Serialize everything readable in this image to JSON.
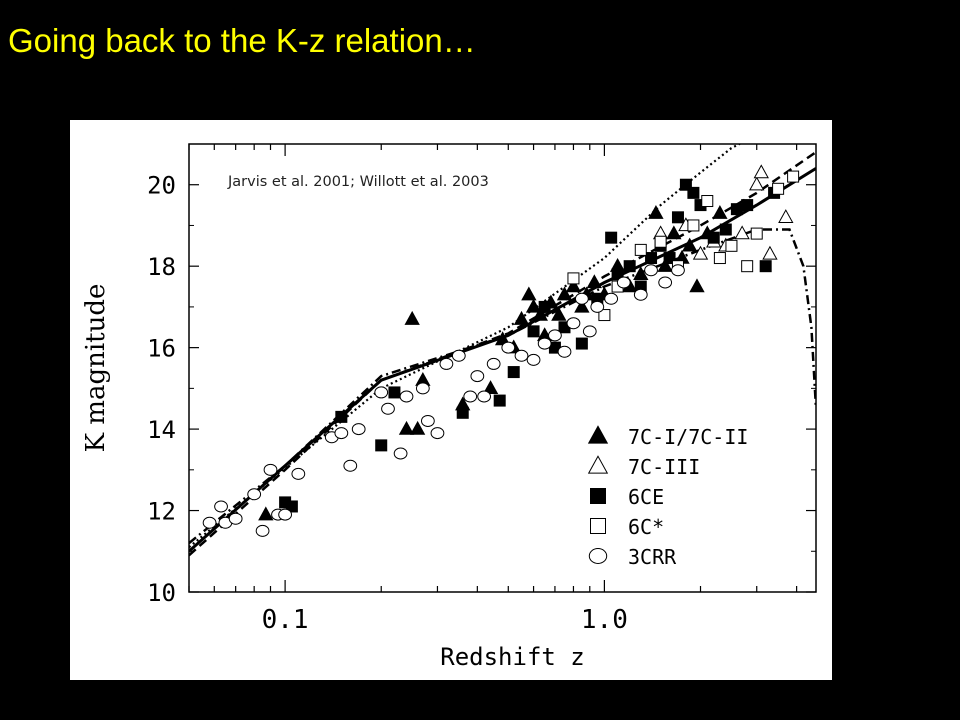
{
  "slide": {
    "title": "Going back to the K-z relation…",
    "background": "#000000",
    "title_color": "#ffff00"
  },
  "chart_data": {
    "type": "scatter",
    "title": "",
    "annotation": "Jarvis et al. 2001; Willott et al. 2003",
    "xlabel": "Redshift z",
    "ylabel": "K magnitude",
    "x_scale": "log",
    "xlim": [
      0.05,
      4.6
    ],
    "ylim": [
      10,
      21
    ],
    "x_ticks": [
      0.1,
      1.0
    ],
    "x_tick_labels": [
      "0.1",
      "1.0"
    ],
    "y_ticks": [
      10,
      12,
      14,
      16,
      18,
      20
    ],
    "y_tick_labels": [
      "10",
      "12",
      "14",
      "16",
      "18",
      "20"
    ],
    "grid": false,
    "legend_position": "bottom-right",
    "series": [
      {
        "name": "7C-I/7C-II",
        "marker": "filled-triangle",
        "points": [
          [
            0.087,
            11.9
          ],
          [
            0.25,
            16.7
          ],
          [
            0.27,
            15.2
          ],
          [
            0.24,
            14.0
          ],
          [
            0.26,
            14.0
          ],
          [
            0.36,
            14.6
          ],
          [
            0.44,
            15.0
          ],
          [
            0.48,
            16.2
          ],
          [
            0.52,
            16.0
          ],
          [
            0.55,
            16.7
          ],
          [
            0.58,
            17.3
          ],
          [
            0.6,
            17.0
          ],
          [
            0.63,
            16.8
          ],
          [
            0.65,
            16.3
          ],
          [
            0.68,
            17.1
          ],
          [
            0.72,
            16.8
          ],
          [
            0.75,
            17.3
          ],
          [
            0.8,
            17.5
          ],
          [
            0.85,
            17.0
          ],
          [
            0.88,
            17.3
          ],
          [
            0.93,
            17.6
          ],
          [
            1.0,
            17.3
          ],
          [
            1.1,
            18.0
          ],
          [
            1.2,
            17.5
          ],
          [
            1.3,
            17.8
          ],
          [
            1.45,
            19.3
          ],
          [
            1.55,
            18.0
          ],
          [
            1.65,
            18.8
          ],
          [
            1.75,
            18.2
          ],
          [
            1.85,
            18.5
          ],
          [
            1.95,
            17.5
          ],
          [
            2.1,
            18.8
          ],
          [
            2.3,
            19.3
          ]
        ]
      },
      {
        "name": "7C-III",
        "marker": "open-triangle",
        "points": [
          [
            1.5,
            18.8
          ],
          [
            1.8,
            19.0
          ],
          [
            2.0,
            18.3
          ],
          [
            2.2,
            18.6
          ],
          [
            2.4,
            18.5
          ],
          [
            2.7,
            18.8
          ],
          [
            3.0,
            20.0
          ],
          [
            3.1,
            20.3
          ],
          [
            3.3,
            18.3
          ],
          [
            3.7,
            19.2
          ]
        ]
      },
      {
        "name": "6CE",
        "marker": "filled-square",
        "points": [
          [
            0.1,
            12.2
          ],
          [
            0.105,
            12.1
          ],
          [
            0.15,
            14.3
          ],
          [
            0.2,
            13.6
          ],
          [
            0.22,
            14.9
          ],
          [
            0.36,
            14.4
          ],
          [
            0.47,
            14.7
          ],
          [
            0.52,
            15.4
          ],
          [
            0.6,
            16.4
          ],
          [
            0.65,
            17.0
          ],
          [
            0.7,
            16.0
          ],
          [
            0.75,
            16.5
          ],
          [
            0.85,
            16.1
          ],
          [
            0.95,
            17.2
          ],
          [
            1.05,
            18.7
          ],
          [
            1.1,
            17.8
          ],
          [
            1.2,
            18.0
          ],
          [
            1.3,
            17.5
          ],
          [
            1.4,
            18.2
          ],
          [
            1.5,
            18.5
          ],
          [
            1.6,
            18.2
          ],
          [
            1.7,
            19.2
          ],
          [
            1.8,
            20.0
          ],
          [
            1.9,
            19.8
          ],
          [
            2.0,
            19.5
          ],
          [
            2.2,
            18.7
          ],
          [
            2.4,
            18.9
          ],
          [
            2.6,
            19.4
          ],
          [
            2.8,
            19.5
          ],
          [
            3.2,
            18.0
          ],
          [
            3.4,
            19.8
          ]
        ]
      },
      {
        "name": "6C*",
        "marker": "open-square",
        "points": [
          [
            0.8,
            17.7
          ],
          [
            1.0,
            16.8
          ],
          [
            1.1,
            17.5
          ],
          [
            1.3,
            18.4
          ],
          [
            1.5,
            18.6
          ],
          [
            1.7,
            18.0
          ],
          [
            1.9,
            19.0
          ],
          [
            2.1,
            19.6
          ],
          [
            2.3,
            18.2
          ],
          [
            2.5,
            18.5
          ],
          [
            2.8,
            18.0
          ],
          [
            3.0,
            18.8
          ],
          [
            3.5,
            19.9
          ],
          [
            3.9,
            20.2
          ]
        ]
      },
      {
        "name": "3CRR",
        "marker": "open-circle",
        "points": [
          [
            0.058,
            11.7
          ],
          [
            0.063,
            12.1
          ],
          [
            0.065,
            11.7
          ],
          [
            0.07,
            11.8
          ],
          [
            0.08,
            12.4
          ],
          [
            0.085,
            11.5
          ],
          [
            0.09,
            13.0
          ],
          [
            0.095,
            11.9
          ],
          [
            0.1,
            11.9
          ],
          [
            0.11,
            12.9
          ],
          [
            0.14,
            13.8
          ],
          [
            0.15,
            13.9
          ],
          [
            0.16,
            13.1
          ],
          [
            0.17,
            14.0
          ],
          [
            0.2,
            14.9
          ],
          [
            0.21,
            14.5
          ],
          [
            0.23,
            13.4
          ],
          [
            0.24,
            14.8
          ],
          [
            0.27,
            15.0
          ],
          [
            0.28,
            14.2
          ],
          [
            0.3,
            13.9
          ],
          [
            0.32,
            15.6
          ],
          [
            0.35,
            15.8
          ],
          [
            0.38,
            14.8
          ],
          [
            0.4,
            15.3
          ],
          [
            0.42,
            14.8
          ],
          [
            0.45,
            15.6
          ],
          [
            0.5,
            16.0
          ],
          [
            0.55,
            15.8
          ],
          [
            0.6,
            15.7
          ],
          [
            0.65,
            16.1
          ],
          [
            0.7,
            16.3
          ],
          [
            0.75,
            15.9
          ],
          [
            0.8,
            16.6
          ],
          [
            0.85,
            17.2
          ],
          [
            0.9,
            16.4
          ],
          [
            0.95,
            17.0
          ],
          [
            1.05,
            17.2
          ],
          [
            1.15,
            17.6
          ],
          [
            1.3,
            17.3
          ],
          [
            1.4,
            17.9
          ],
          [
            1.55,
            17.6
          ],
          [
            1.7,
            17.9
          ]
        ]
      }
    ],
    "fit_lines": [
      {
        "style": "solid",
        "points": [
          [
            0.05,
            11.0
          ],
          [
            0.1,
            13.1
          ],
          [
            0.2,
            15.2
          ],
          [
            0.5,
            16.3
          ],
          [
            1.0,
            17.6
          ],
          [
            2.0,
            18.7
          ],
          [
            3.0,
            19.5
          ],
          [
            4.6,
            20.4
          ]
        ]
      },
      {
        "style": "dashed",
        "points": [
          [
            0.05,
            10.9
          ],
          [
            0.1,
            13.0
          ],
          [
            0.2,
            15.2
          ],
          [
            0.5,
            16.35
          ],
          [
            1.0,
            17.75
          ],
          [
            2.0,
            19.0
          ],
          [
            3.0,
            19.8
          ],
          [
            4.6,
            20.8
          ]
        ]
      },
      {
        "style": "dotted",
        "points": [
          [
            0.05,
            11.1
          ],
          [
            0.1,
            13.05
          ],
          [
            0.2,
            15.0
          ],
          [
            0.5,
            16.5
          ],
          [
            1.0,
            18.2
          ],
          [
            1.5,
            19.5
          ],
          [
            2.0,
            20.3
          ],
          [
            2.5,
            20.9
          ],
          [
            2.8,
            21.1
          ]
        ]
      },
      {
        "style": "dashdot",
        "points": [
          [
            0.05,
            11.2
          ],
          [
            0.1,
            13.1
          ],
          [
            0.2,
            15.3
          ],
          [
            0.5,
            16.3
          ],
          [
            1.0,
            17.5
          ],
          [
            2.0,
            18.4
          ],
          [
            3.0,
            18.9
          ],
          [
            3.8,
            18.9
          ],
          [
            4.2,
            18.0
          ],
          [
            4.45,
            16.5
          ],
          [
            4.6,
            14.5
          ]
        ]
      }
    ]
  }
}
